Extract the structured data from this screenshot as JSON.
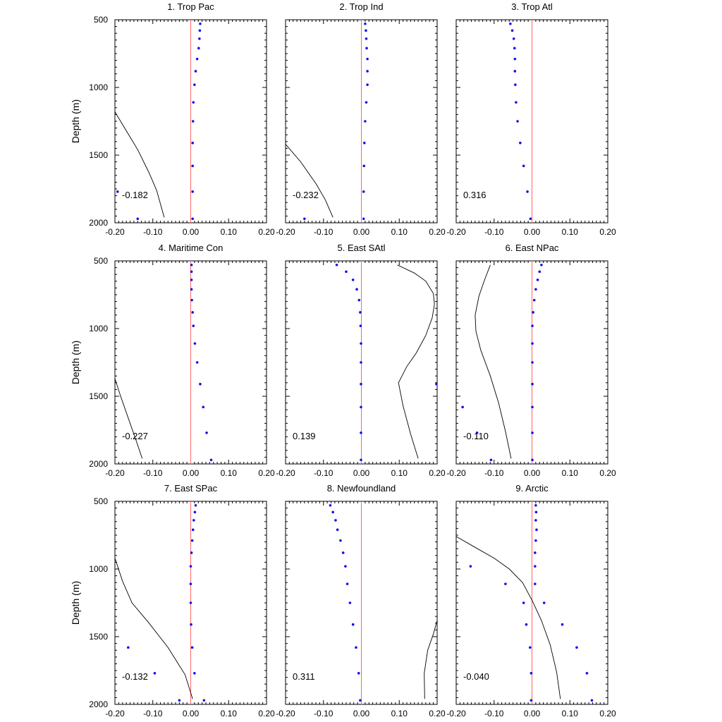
{
  "figure": {
    "ylabel": "Depth (m)",
    "xticks": [
      "-0.20",
      "-0.10",
      "0.00",
      "0.10",
      "0.20"
    ],
    "yticks": [
      "500",
      "1000",
      "1500",
      "2000"
    ],
    "colors": {
      "points": "#1111ee",
      "zero_line": "#ff6666",
      "curve": "#000000",
      "axes": "#000000"
    }
  },
  "chart_data": [
    {
      "type": "scatter",
      "title": "1. Trop Pac",
      "annotation": "-0.182",
      "xlim": [
        -0.2,
        0.2
      ],
      "ylim": [
        2000,
        500
      ],
      "xlabel": "",
      "ylabel": "Depth (m)",
      "grid": false,
      "points": [
        [
          0.025,
          530
        ],
        [
          0.024,
          580
        ],
        [
          0.023,
          640
        ],
        [
          0.021,
          710
        ],
        [
          0.017,
          790
        ],
        [
          0.013,
          880
        ],
        [
          0.01,
          980
        ],
        [
          0.007,
          1110
        ],
        [
          0.006,
          1250
        ],
        [
          0.005,
          1410
        ],
        [
          0.005,
          1580
        ],
        [
          0.005,
          1770
        ],
        [
          0.005,
          1970
        ],
        [
          -0.193,
          1770
        ],
        [
          -0.14,
          1970
        ]
      ],
      "curve": [
        [
          -0.2,
          1180
        ],
        [
          -0.17,
          1320
        ],
        [
          -0.14,
          1460
        ],
        [
          -0.11,
          1630
        ],
        [
          -0.09,
          1760
        ],
        [
          -0.07,
          1960
        ]
      ]
    },
    {
      "type": "scatter",
      "title": "2. Trop Ind",
      "annotation": "-0.232",
      "xlim": [
        -0.2,
        0.2
      ],
      "ylim": [
        2000,
        500
      ],
      "xlabel": "",
      "ylabel": "",
      "grid": false,
      "points": [
        [
          0.01,
          530
        ],
        [
          0.012,
          580
        ],
        [
          0.013,
          640
        ],
        [
          0.014,
          710
        ],
        [
          0.016,
          790
        ],
        [
          0.016,
          880
        ],
        [
          0.016,
          980
        ],
        [
          0.013,
          1110
        ],
        [
          0.01,
          1250
        ],
        [
          0.008,
          1410
        ],
        [
          0.007,
          1580
        ],
        [
          0.006,
          1770
        ],
        [
          0.006,
          1970
        ],
        [
          -0.15,
          1970
        ]
      ],
      "curve": [
        [
          -0.2,
          1420
        ],
        [
          -0.16,
          1550
        ],
        [
          -0.12,
          1710
        ],
        [
          -0.095,
          1830
        ],
        [
          -0.075,
          1960
        ]
      ]
    },
    {
      "type": "scatter",
      "title": "3. Trop Atl",
      "annotation": "0.316",
      "xlim": [
        -0.2,
        0.2
      ],
      "ylim": [
        2000,
        500
      ],
      "xlabel": "",
      "ylabel": "",
      "grid": false,
      "points": [
        [
          -0.057,
          530
        ],
        [
          -0.052,
          580
        ],
        [
          -0.048,
          640
        ],
        [
          -0.046,
          710
        ],
        [
          -0.045,
          790
        ],
        [
          -0.045,
          880
        ],
        [
          -0.044,
          980
        ],
        [
          -0.042,
          1110
        ],
        [
          -0.038,
          1250
        ],
        [
          -0.031,
          1410
        ],
        [
          -0.022,
          1580
        ],
        [
          -0.012,
          1770
        ],
        [
          -0.004,
          1970
        ]
      ],
      "curve": []
    },
    {
      "type": "scatter",
      "title": "4. Maritime Con",
      "annotation": "-0.227",
      "xlim": [
        -0.2,
        0.2
      ],
      "ylim": [
        2000,
        500
      ],
      "xlabel": "",
      "ylabel": "Depth (m)",
      "grid": false,
      "points": [
        [
          0.002,
          530
        ],
        [
          0.002,
          580
        ],
        [
          0.002,
          640
        ],
        [
          0.002,
          710
        ],
        [
          0.003,
          790
        ],
        [
          0.005,
          880
        ],
        [
          0.007,
          980
        ],
        [
          0.011,
          1110
        ],
        [
          0.017,
          1250
        ],
        [
          0.025,
          1410
        ],
        [
          0.033,
          1580
        ],
        [
          0.042,
          1770
        ],
        [
          0.054,
          1970
        ]
      ],
      "curve": [
        [
          -0.2,
          1370
        ],
        [
          -0.185,
          1500
        ],
        [
          -0.165,
          1660
        ],
        [
          -0.145,
          1820
        ],
        [
          -0.128,
          1960
        ]
      ]
    },
    {
      "type": "scatter",
      "title": "5. East SAtl",
      "annotation": "0.139",
      "xlim": [
        -0.2,
        0.2
      ],
      "ylim": [
        2000,
        500
      ],
      "xlabel": "",
      "ylabel": "",
      "grid": false,
      "points": [
        [
          -0.065,
          530
        ],
        [
          -0.04,
          580
        ],
        [
          -0.022,
          640
        ],
        [
          -0.012,
          710
        ],
        [
          -0.006,
          790
        ],
        [
          -0.003,
          880
        ],
        [
          -0.002,
          980
        ],
        [
          -0.001,
          1110
        ],
        [
          -0.001,
          1250
        ],
        [
          -0.001,
          1410
        ],
        [
          -0.001,
          1580
        ],
        [
          -0.001,
          1770
        ],
        [
          -0.001,
          1970
        ],
        [
          0.198,
          1410
        ]
      ],
      "curve": [
        [
          0.095,
          530
        ],
        [
          0.14,
          590
        ],
        [
          0.17,
          650
        ],
        [
          0.19,
          740
        ],
        [
          0.193,
          820
        ],
        [
          0.187,
          920
        ],
        [
          0.17,
          1050
        ],
        [
          0.145,
          1180
        ],
        [
          0.12,
          1280
        ],
        [
          0.098,
          1400
        ],
        [
          0.11,
          1570
        ],
        [
          0.13,
          1780
        ],
        [
          0.15,
          1960
        ]
      ]
    },
    {
      "type": "scatter",
      "title": "6. East NPac",
      "annotation": "-0.110",
      "xlim": [
        -0.2,
        0.2
      ],
      "ylim": [
        2000,
        500
      ],
      "xlabel": "",
      "ylabel": "",
      "grid": false,
      "points": [
        [
          0.025,
          530
        ],
        [
          0.02,
          580
        ],
        [
          0.015,
          640
        ],
        [
          0.01,
          710
        ],
        [
          0.006,
          790
        ],
        [
          0.003,
          880
        ],
        [
          0.001,
          980
        ],
        [
          0.001,
          1110
        ],
        [
          0.001,
          1250
        ],
        [
          0.001,
          1410
        ],
        [
          0.001,
          1580
        ],
        [
          0.001,
          1770
        ],
        [
          0.001,
          1970
        ],
        [
          -0.183,
          1580
        ],
        [
          -0.145,
          1770
        ],
        [
          -0.108,
          1970
        ]
      ],
      "curve": [
        [
          -0.11,
          530
        ],
        [
          -0.125,
          640
        ],
        [
          -0.14,
          760
        ],
        [
          -0.15,
          900
        ],
        [
          -0.148,
          1020
        ],
        [
          -0.135,
          1160
        ],
        [
          -0.11,
          1350
        ],
        [
          -0.088,
          1550
        ],
        [
          -0.07,
          1760
        ],
        [
          -0.055,
          1960
        ]
      ]
    },
    {
      "type": "scatter",
      "title": "7. East SPac",
      "annotation": "-0.132",
      "xlim": [
        -0.2,
        0.2
      ],
      "ylim": [
        2000,
        500
      ],
      "xlabel": "",
      "ylabel": "Depth (m)",
      "grid": false,
      "points": [
        [
          0.013,
          530
        ],
        [
          0.011,
          580
        ],
        [
          0.008,
          640
        ],
        [
          0.006,
          710
        ],
        [
          0.004,
          790
        ],
        [
          0.002,
          880
        ],
        [
          0.0,
          980
        ],
        [
          0.0,
          1110
        ],
        [
          0.0,
          1250
        ],
        [
          0.001,
          1410
        ],
        [
          0.004,
          1580
        ],
        [
          0.01,
          1770
        ],
        [
          0.035,
          1970
        ],
        [
          -0.165,
          1580
        ],
        [
          -0.095,
          1770
        ],
        [
          -0.03,
          1970
        ]
      ],
      "curve": [
        [
          -0.2,
          920
        ],
        [
          -0.18,
          1090
        ],
        [
          -0.155,
          1250
        ],
        [
          -0.11,
          1400
        ],
        [
          -0.06,
          1580
        ],
        [
          -0.015,
          1780
        ],
        [
          0.005,
          1960
        ]
      ]
    },
    {
      "type": "scatter",
      "title": "8. Newfoundland",
      "annotation": "0.311",
      "xlim": [
        -0.2,
        0.2
      ],
      "ylim": [
        2000,
        500
      ],
      "xlabel": "",
      "ylabel": "",
      "grid": false,
      "points": [
        [
          -0.082,
          530
        ],
        [
          -0.075,
          580
        ],
        [
          -0.068,
          640
        ],
        [
          -0.063,
          710
        ],
        [
          -0.055,
          790
        ],
        [
          -0.048,
          880
        ],
        [
          -0.042,
          980
        ],
        [
          -0.037,
          1110
        ],
        [
          -0.03,
          1250
        ],
        [
          -0.022,
          1410
        ],
        [
          -0.014,
          1580
        ],
        [
          -0.007,
          1770
        ],
        [
          -0.003,
          1970
        ]
      ],
      "curve": [
        [
          0.2,
          1380
        ],
        [
          0.19,
          1480
        ],
        [
          0.175,
          1600
        ],
        [
          0.166,
          1770
        ],
        [
          0.167,
          1960
        ]
      ]
    },
    {
      "type": "scatter",
      "title": "9. Arctic",
      "annotation": "-0.040",
      "xlim": [
        -0.2,
        0.2
      ],
      "ylim": [
        2000,
        500
      ],
      "xlabel": "",
      "ylabel": "",
      "grid": false,
      "points": [
        [
          0.01,
          530
        ],
        [
          0.011,
          580
        ],
        [
          0.01,
          640
        ],
        [
          0.012,
          710
        ],
        [
          0.01,
          790
        ],
        [
          0.008,
          880
        ],
        [
          0.008,
          980
        ],
        [
          0.008,
          1110
        ],
        [
          0.032,
          1250
        ],
        [
          0.08,
          1410
        ],
        [
          0.118,
          1580
        ],
        [
          0.145,
          1770
        ],
        [
          0.158,
          1970
        ],
        [
          -0.162,
          980
        ],
        [
          -0.07,
          1110
        ],
        [
          -0.022,
          1250
        ],
        [
          -0.015,
          1410
        ],
        [
          -0.005,
          1580
        ],
        [
          -0.002,
          1770
        ],
        [
          -0.002,
          1970
        ]
      ],
      "curve": [
        [
          -0.2,
          760
        ],
        [
          -0.15,
          840
        ],
        [
          -0.1,
          920
        ],
        [
          -0.06,
          1000
        ],
        [
          -0.025,
          1100
        ],
        [
          0.0,
          1230
        ],
        [
          0.025,
          1380
        ],
        [
          0.048,
          1560
        ],
        [
          0.065,
          1760
        ],
        [
          0.075,
          1960
        ]
      ]
    }
  ]
}
